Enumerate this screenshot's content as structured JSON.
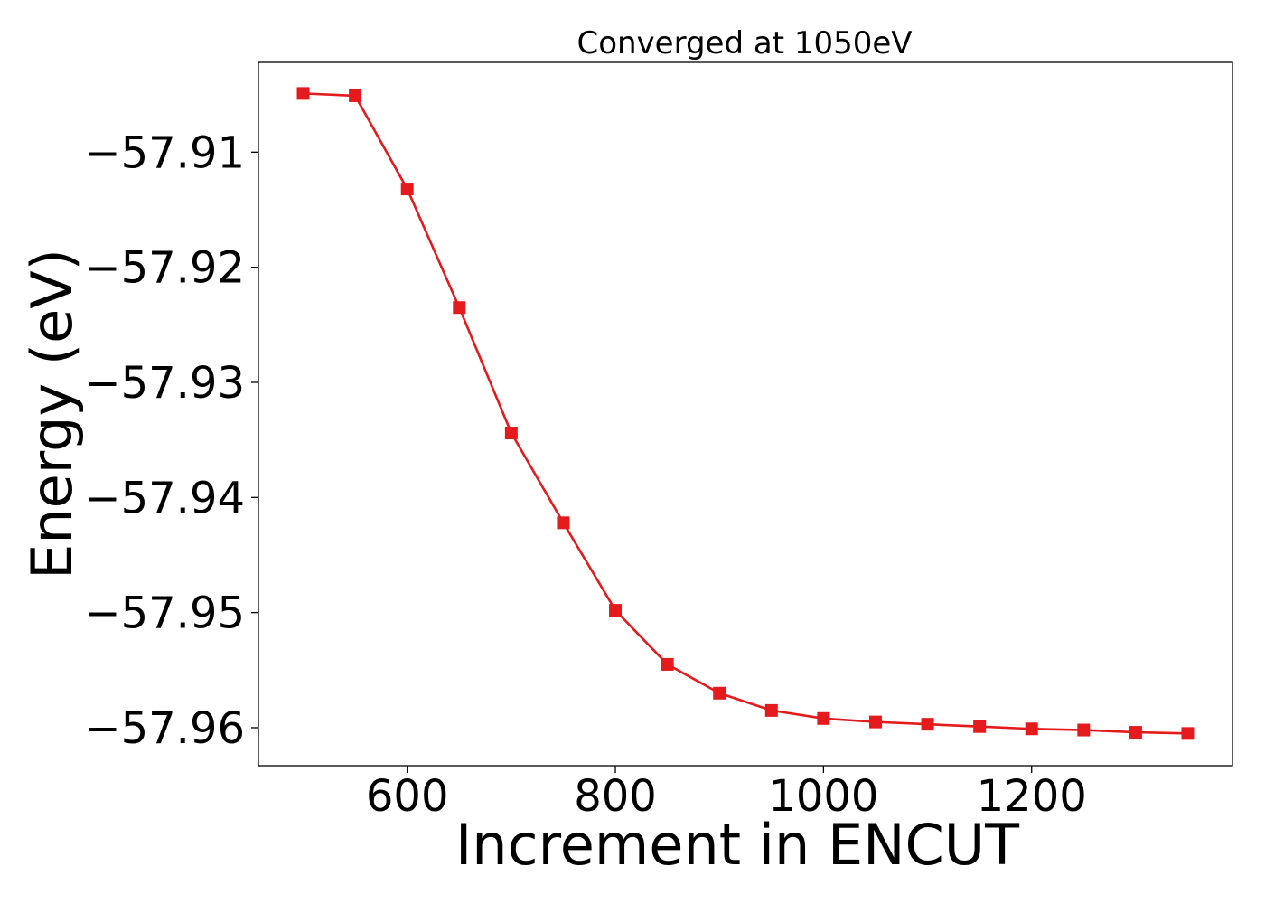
{
  "chart_data": {
    "type": "line",
    "title": "Converged at 1050eV",
    "xlabel": "Increment in ENCUT",
    "ylabel": "Energy (eV)",
    "x": [
      500,
      550,
      600,
      650,
      700,
      750,
      800,
      850,
      900,
      950,
      1000,
      1050,
      1100,
      1150,
      1200,
      1250,
      1300,
      1350
    ],
    "series": [
      {
        "values": [
          -57.9049,
          -57.9051,
          -57.9132,
          -57.9235,
          -57.9344,
          -57.9422,
          -57.9498,
          -57.9545,
          -57.957,
          -57.9585,
          -57.9592,
          -57.9595,
          -57.9597,
          -57.9599,
          -57.9601,
          -57.9602,
          -57.9604,
          -57.9605
        ],
        "color": "#e41a1c",
        "marker": "square"
      }
    ],
    "xticks": [
      600,
      800,
      1000,
      1200
    ],
    "xtick_labels": [
      "600",
      "800",
      "1000",
      "1200"
    ],
    "yticks": [
      -57.91,
      -57.92,
      -57.93,
      -57.94,
      -57.95,
      -57.96
    ],
    "ytick_labels": [
      "−57.91",
      "−57.92",
      "−57.93",
      "−57.94",
      "−57.95",
      "−57.96"
    ],
    "xlim": [
      457,
      1393
    ],
    "ylim": [
      -57.9633,
      -57.9022
    ],
    "grid": false,
    "legend": "none"
  }
}
